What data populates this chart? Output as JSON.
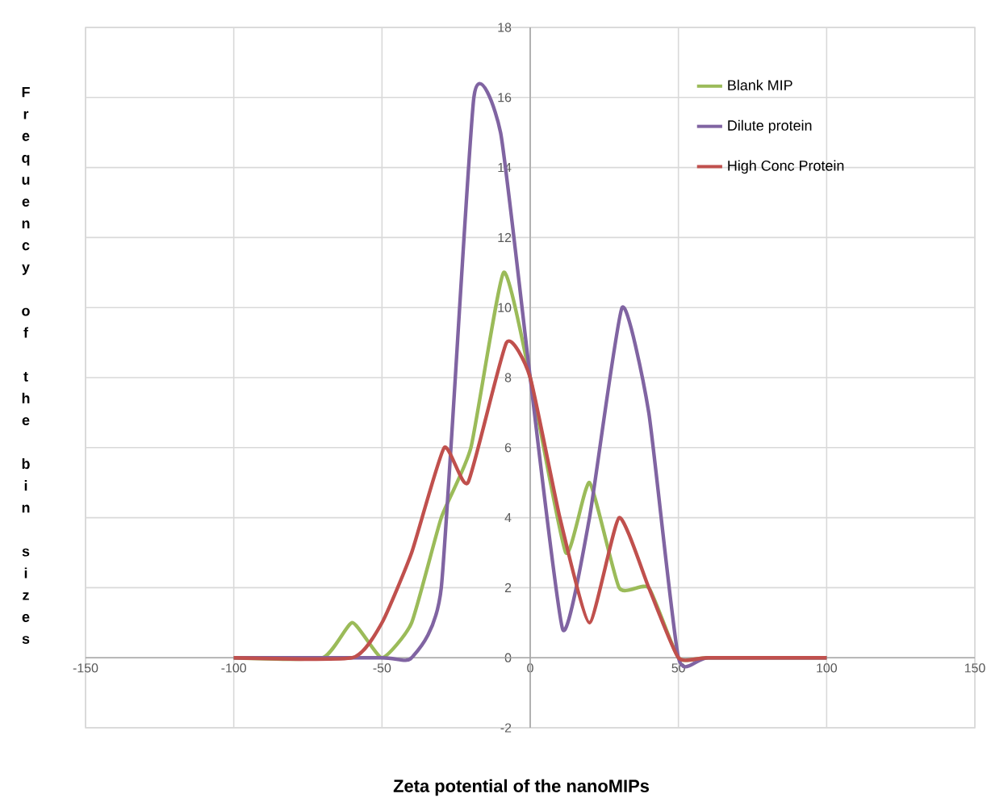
{
  "chart_data": {
    "type": "line",
    "xlabel": "Zeta potential of the nanoMIPs",
    "ylabel": "Frequency of the bin sizes",
    "xlim": [
      -150,
      150
    ],
    "ylim": [
      -2,
      18
    ],
    "xticks": [
      -150,
      -100,
      -50,
      0,
      50,
      100,
      150
    ],
    "yticks": [
      -2,
      0,
      2,
      4,
      6,
      8,
      10,
      12,
      14,
      16,
      18
    ],
    "grid": true,
    "legend": "top right",
    "marker": "none",
    "line_style": "solid",
    "series": [
      {
        "name": "Blank MIP",
        "color": "#9bbb59",
        "x": [
          -100,
          -70,
          -60,
          -50,
          -40,
          -30,
          -20,
          -9,
          0,
          12,
          20,
          30,
          40,
          50,
          60,
          100
        ],
        "values": [
          0,
          0,
          1,
          0,
          1,
          4,
          6,
          11,
          8,
          3,
          5,
          2,
          2,
          0,
          0,
          0
        ]
      },
      {
        "name": "Dilute protein",
        "color": "#8064a2",
        "x": [
          -100,
          -50,
          -40,
          -30,
          -19,
          -10,
          0,
          11,
          20,
          31,
          40,
          50,
          60,
          100
        ],
        "values": [
          0,
          0,
          0,
          2,
          16,
          15,
          8,
          0.8,
          4,
          10,
          7,
          0,
          0,
          0
        ]
      },
      {
        "name": "High Conc Protein",
        "color": "#c0504d",
        "x": [
          -100,
          -60,
          -50,
          -40,
          -29,
          -21,
          -8,
          0,
          10,
          20,
          30,
          40,
          50,
          60,
          100
        ],
        "values": [
          0,
          0,
          1,
          3,
          6,
          5,
          9,
          8,
          4,
          1,
          4,
          2,
          0,
          0,
          0
        ]
      }
    ]
  }
}
